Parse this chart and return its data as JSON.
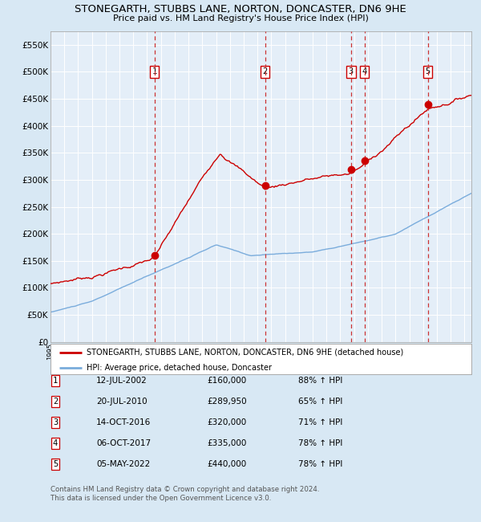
{
  "title": "STONEGARTH, STUBBS LANE, NORTON, DONCASTER, DN6 9HE",
  "subtitle": "Price paid vs. HM Land Registry's House Price Index (HPI)",
  "red_legend": "STONEGARTH, STUBBS LANE, NORTON, DONCASTER, DN6 9HE (detached house)",
  "blue_legend": "HPI: Average price, detached house, Doncaster",
  "footnote1": "Contains HM Land Registry data © Crown copyright and database right 2024.",
  "footnote2": "This data is licensed under the Open Government Licence v3.0.",
  "sales": [
    {
      "num": 1,
      "date": "12-JUL-2002",
      "price": "£160,000",
      "hpi": "88% ↑ HPI",
      "year": 2002.53,
      "price_val": 160000
    },
    {
      "num": 2,
      "date": "20-JUL-2010",
      "price": "£289,950",
      "hpi": "65% ↑ HPI",
      "year": 2010.55,
      "price_val": 289950
    },
    {
      "num": 3,
      "date": "14-OCT-2016",
      "price": "£320,000",
      "hpi": "71% ↑ HPI",
      "year": 2016.78,
      "price_val": 320000
    },
    {
      "num": 4,
      "date": "06-OCT-2017",
      "price": "£335,000",
      "hpi": "78% ↑ HPI",
      "year": 2017.76,
      "price_val": 335000
    },
    {
      "num": 5,
      "date": "05-MAY-2022",
      "price": "£440,000",
      "hpi": "78% ↑ HPI",
      "year": 2022.34,
      "price_val": 440000
    }
  ],
  "ylim": [
    0,
    575000
  ],
  "xlim_start": 1995.0,
  "xlim_end": 2025.5,
  "bg_color": "#d8e8f4",
  "plot_bg": "#e4eef8",
  "red_color": "#cc0000",
  "blue_color": "#7aacdc",
  "grid_color": "#ffffff",
  "dashed_color": "#cc3333"
}
